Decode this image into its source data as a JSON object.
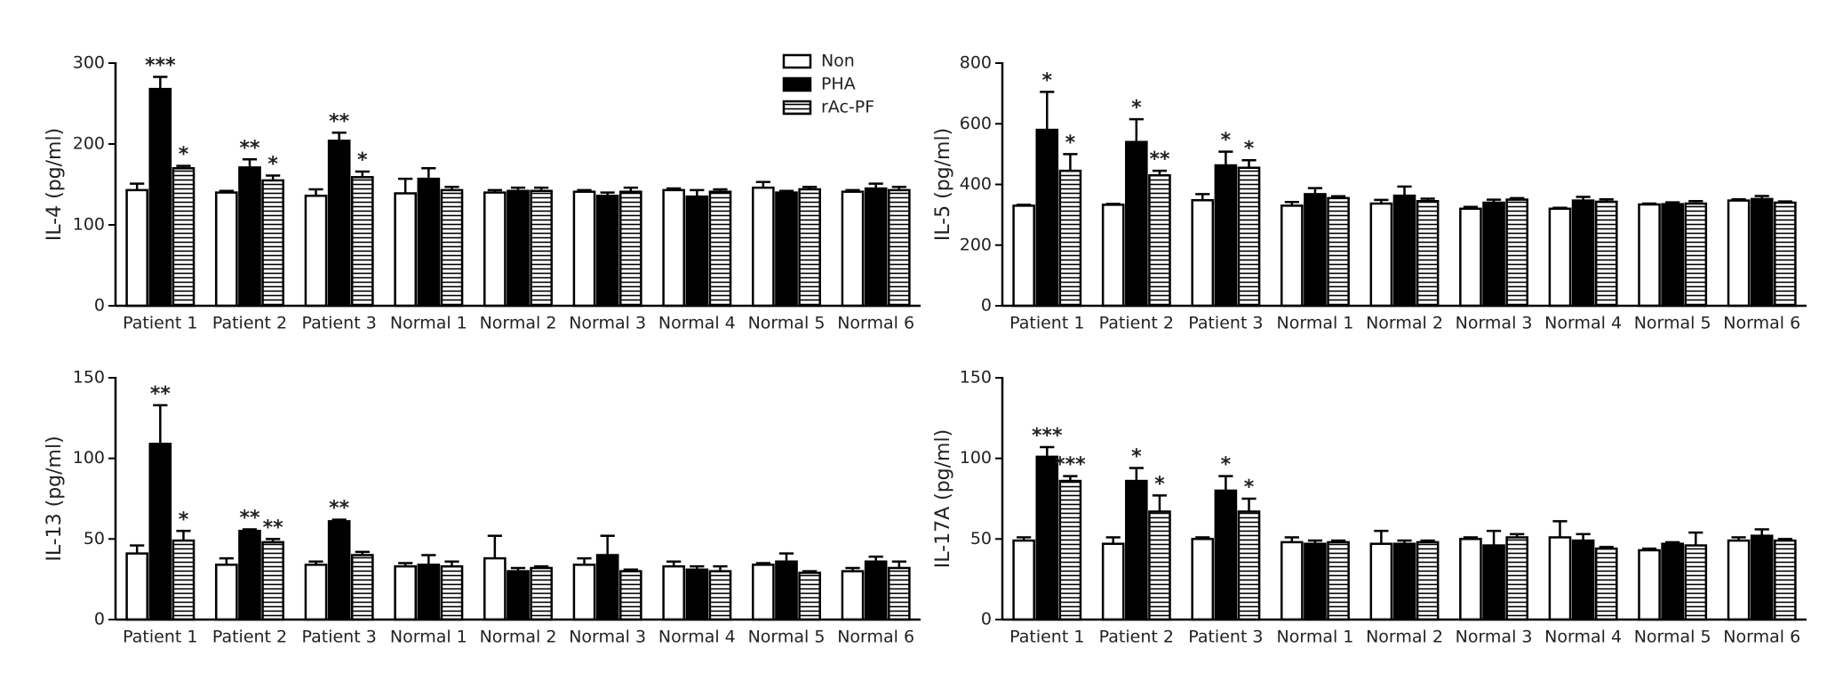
{
  "chart_data": [
    {
      "type": "bar",
      "ylabel": "IL-4 (pg/ml)",
      "ylim": [
        0,
        300
      ],
      "yticks": [
        0,
        100,
        200,
        300
      ],
      "legend": "top-right",
      "categories": [
        "Patient 1",
        "Patient 2",
        "Patient 3",
        "Normal 1",
        "Normal 2",
        "Normal 3",
        "Normal 4",
        "Normal 5",
        "Normal 6"
      ],
      "series": [
        {
          "name": "Non",
          "color": "#ffffff",
          "pattern": "solid",
          "values": [
            143,
            140,
            136,
            139,
            140,
            141,
            143,
            146,
            141
          ],
          "errors": [
            8,
            2,
            8,
            18,
            3,
            2,
            2,
            7,
            2
          ],
          "annotations": [
            null,
            null,
            null,
            null,
            null,
            null,
            null,
            null,
            null
          ]
        },
        {
          "name": "PHA",
          "color": "#000000",
          "pattern": "solid",
          "values": [
            268,
            171,
            204,
            157,
            142,
            136,
            135,
            140,
            145
          ],
          "errors": [
            15,
            10,
            10,
            13,
            4,
            4,
            8,
            2,
            6
          ],
          "annotations": [
            "***",
            "**",
            "**",
            null,
            null,
            null,
            null,
            null,
            null
          ]
        },
        {
          "name": "rAc-PF",
          "color": "#ffffff",
          "pattern": "horizontal-lines",
          "values": [
            170,
            155,
            159,
            143,
            142,
            141,
            141,
            144,
            143
          ],
          "errors": [
            3,
            6,
            7,
            4,
            4,
            5,
            3,
            3,
            4
          ],
          "annotations": [
            "*",
            "*",
            "*",
            null,
            null,
            null,
            null,
            null,
            null
          ]
        }
      ]
    },
    {
      "type": "bar",
      "ylabel": "IL-5 (pg/ml)",
      "ylim": [
        0,
        800
      ],
      "yticks": [
        0,
        200,
        400,
        600,
        800
      ],
      "categories": [
        "Patient 1",
        "Patient 2",
        "Patient 3",
        "Normal 1",
        "Normal 2",
        "Normal 3",
        "Normal 4",
        "Normal 5",
        "Normal 6"
      ],
      "series": [
        {
          "name": "Non",
          "color": "#ffffff",
          "pattern": "solid",
          "values": [
            330,
            333,
            348,
            330,
            337,
            320,
            320,
            334,
            347
          ],
          "errors": [
            3,
            3,
            20,
            12,
            12,
            6,
            3,
            3,
            4
          ],
          "annotations": [
            null,
            null,
            null,
            null,
            null,
            null,
            null,
            null,
            null
          ]
        },
        {
          "name": "PHA",
          "color": "#000000",
          "pattern": "solid",
          "values": [
            580,
            540,
            463,
            368,
            363,
            340,
            347,
            335,
            352
          ],
          "errors": [
            125,
            75,
            45,
            20,
            30,
            10,
            12,
            6,
            10
          ],
          "annotations": [
            "*",
            "*",
            "*",
            null,
            null,
            null,
            null,
            null,
            null
          ]
        },
        {
          "name": "rAc-PF",
          "color": "#ffffff",
          "pattern": "horizontal-lines",
          "values": [
            445,
            430,
            455,
            355,
            345,
            350,
            343,
            337,
            340
          ],
          "errors": [
            55,
            15,
            25,
            6,
            8,
            5,
            8,
            8,
            4
          ],
          "annotations": [
            "*",
            "**",
            "*",
            null,
            null,
            null,
            null,
            null,
            null
          ]
        }
      ]
    },
    {
      "type": "bar",
      "ylabel": "IL-13 (pg/ml)",
      "ylim": [
        0,
        150
      ],
      "yticks": [
        0,
        50,
        100,
        150
      ],
      "categories": [
        "Patient 1",
        "Patient 2",
        "Patient 3",
        "Normal 1",
        "Normal 2",
        "Normal 3",
        "Normal 4",
        "Normal 5",
        "Normal 6"
      ],
      "series": [
        {
          "name": "Non",
          "color": "#ffffff",
          "pattern": "solid",
          "values": [
            41,
            34,
            34,
            33,
            38,
            34,
            33,
            34,
            30
          ],
          "errors": [
            5,
            4,
            2,
            2,
            14,
            4,
            3,
            1,
            2
          ],
          "annotations": [
            null,
            null,
            null,
            null,
            null,
            null,
            null,
            null,
            null
          ]
        },
        {
          "name": "PHA",
          "color": "#000000",
          "pattern": "solid",
          "values": [
            109,
            55,
            61,
            34,
            30,
            40,
            31,
            36,
            36
          ],
          "errors": [
            24,
            1,
            1,
            6,
            2,
            12,
            2,
            5,
            3
          ],
          "annotations": [
            "**",
            "**",
            "**",
            null,
            null,
            null,
            null,
            null,
            null
          ]
        },
        {
          "name": "rAc-PF",
          "color": "#ffffff",
          "pattern": "horizontal-lines",
          "values": [
            49,
            48,
            40,
            33,
            32,
            30,
            30,
            29,
            32
          ],
          "errors": [
            6,
            2,
            2,
            3,
            1,
            1,
            3,
            1,
            4
          ],
          "annotations": [
            "*",
            "**",
            null,
            null,
            null,
            null,
            null,
            null,
            null
          ]
        }
      ]
    },
    {
      "type": "bar",
      "ylabel": "IL-17A (pg/ml)",
      "ylim": [
        0,
        150
      ],
      "yticks": [
        0,
        50,
        100,
        150
      ],
      "categories": [
        "Patient 1",
        "Patient 2",
        "Patient 3",
        "Normal 1",
        "Normal 2",
        "Normal 3",
        "Normal 4",
        "Normal 5",
        "Normal 6"
      ],
      "series": [
        {
          "name": "Non",
          "color": "#ffffff",
          "pattern": "solid",
          "values": [
            49,
            47,
            50,
            48,
            47,
            50,
            51,
            43,
            49
          ],
          "errors": [
            2,
            4,
            1,
            3,
            8,
            1,
            10,
            1,
            2
          ],
          "annotations": [
            null,
            null,
            null,
            null,
            null,
            null,
            null,
            null,
            null
          ]
        },
        {
          "name": "PHA",
          "color": "#000000",
          "pattern": "solid",
          "values": [
            101,
            86,
            80,
            47,
            47,
            46,
            49,
            47,
            52
          ],
          "errors": [
            6,
            8,
            9,
            2,
            2,
            9,
            4,
            1,
            4
          ],
          "annotations": [
            "***",
            "*",
            "*",
            null,
            null,
            null,
            null,
            null,
            null
          ]
        },
        {
          "name": "rAc-PF",
          "color": "#ffffff",
          "pattern": "horizontal-lines",
          "values": [
            86,
            67,
            67,
            48,
            48,
            51,
            44,
            46,
            49
          ],
          "errors": [
            3,
            10,
            8,
            1,
            1,
            2,
            1,
            8,
            1
          ],
          "annotations": [
            "***",
            "*",
            "*",
            null,
            null,
            null,
            null,
            null,
            null
          ]
        }
      ]
    }
  ]
}
